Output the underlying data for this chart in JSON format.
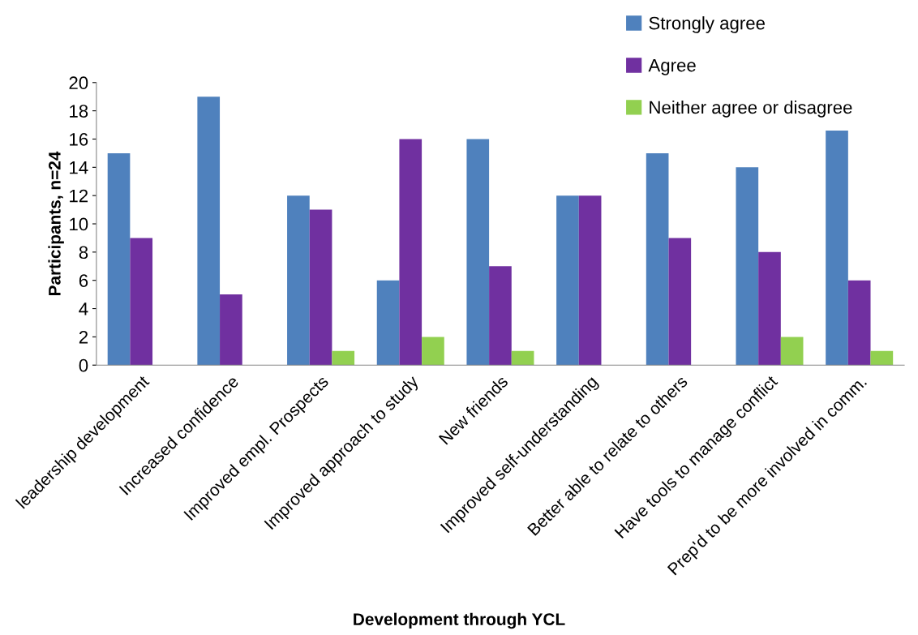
{
  "chart_data": {
    "type": "bar",
    "xlabel": "Development through YCL",
    "ylabel": "Participants, n=24",
    "categories": [
      "leadership development",
      "Increased confidence",
      "Improved empl. Prospects",
      "Improved approach to study",
      "New friends",
      "Improved self-understanding",
      "Better able to relate to others",
      "Have tools to manage conflict",
      "Prep'd to be more involved in comm."
    ],
    "series": [
      {
        "name": "Strongly agree",
        "color": "#4f81bd",
        "values": [
          15,
          19,
          12,
          6,
          16,
          12,
          15,
          14,
          16.6
        ]
      },
      {
        "name": "Agree",
        "color": "#7030a0",
        "values": [
          9,
          5,
          11,
          16,
          7,
          12,
          9,
          8,
          6
        ]
      },
      {
        "name": "Neither agree or disagree",
        "color": "#92d050",
        "values": [
          null,
          null,
          1,
          2,
          1,
          null,
          null,
          2,
          1
        ]
      }
    ],
    "ylim": [
      0,
      20
    ],
    "yticks": [
      0,
      2,
      4,
      6,
      8,
      10,
      12,
      14,
      16,
      18,
      20
    ],
    "grid": false,
    "legend": "top right"
  }
}
